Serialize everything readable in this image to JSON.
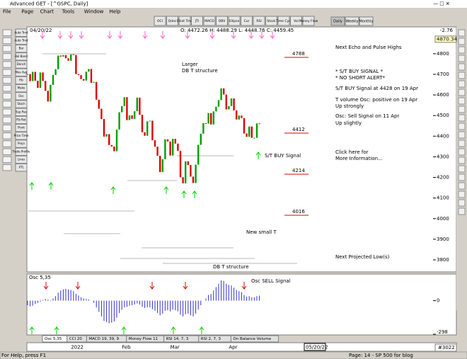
{
  "window": {
    "title": "Advanced GET - [^GSPC, Daily]"
  },
  "menu": [
    "File",
    "Page",
    "Chart",
    "Tools",
    "Window",
    "Help"
  ],
  "toolbar": [
    "OCI",
    "Qdec",
    "Elliot Trnd",
    "JTI",
    "MACD",
    "OBV",
    "Ellipse",
    "Cur",
    "RSI",
    "Stock",
    "Time Cycl",
    "Vol",
    "Money Flow"
  ],
  "periods": [
    "Daily",
    "Weekly",
    "Monthly"
  ],
  "sidebar": [
    "Auto Trnd",
    "Auto Trnd",
    "Bar",
    "Bol Band",
    "Donch",
    "Mov Avg",
    "Fib",
    "Make",
    "Osc",
    "Stoch",
    "Sup Res",
    "Fib Ret",
    "Pivot",
    "Price Time",
    "Projn",
    "Trade Profile",
    "Lines",
    "XTL"
  ],
  "header": {
    "date": "04/20/22",
    "ohlc": "O: 4472.26  H: 4488.29  L: 4448.76  C: 4459.45",
    "change": "-2.76"
  },
  "chart_data": [
    {
      "type": "candlestick",
      "categories": [
        null,
        null,
        null,
        null,
        null,
        null,
        null,
        null,
        null,
        null,
        null,
        null,
        null,
        null,
        null,
        null,
        null,
        "2022",
        null,
        null,
        null,
        null,
        null,
        null,
        null,
        null,
        null,
        null,
        null,
        null,
        null,
        null,
        null,
        null,
        null,
        null,
        null,
        "Feb",
        null,
        null,
        null,
        null,
        null,
        null,
        null,
        null,
        null,
        null,
        null,
        null,
        null,
        null,
        null,
        null,
        null,
        null,
        "Mar",
        null,
        null,
        null,
        null,
        null,
        null,
        null,
        null,
        null,
        null,
        null,
        null,
        null,
        null,
        null,
        null,
        null,
        null,
        null,
        null,
        null,
        null,
        "Apr",
        null,
        null,
        null,
        null,
        null,
        null,
        null,
        null,
        null,
        null,
        null,
        null
      ],
      "values": [
        4701,
        4667,
        4712,
        4669,
        4634,
        4709,
        4668,
        4620,
        4568,
        4649,
        4697,
        4725,
        4791,
        4786,
        4793,
        4778,
        4766,
        4797,
        4794,
        4701,
        4696,
        4677,
        4670,
        4713,
        4726,
        4659,
        4663,
        4577,
        4533,
        4483,
        4398,
        4410,
        4357,
        4350,
        4327,
        4432,
        4516,
        4546,
        4589,
        4478,
        4501,
        4484,
        4521,
        4587,
        4504,
        4419,
        4402,
        4472,
        4475,
        4380,
        4349,
        4305,
        4226,
        4288,
        4385,
        4374,
        4306,
        4387,
        4364,
        4329,
        4201,
        4171,
        4278,
        4260,
        4204,
        4173,
        4262,
        4358,
        4412,
        4463,
        4461,
        4512,
        4457,
        4520,
        4543,
        4575,
        4632,
        4602,
        4530,
        4546,
        4583,
        4525,
        4481,
        4500,
        4488,
        4413,
        4397,
        4447,
        4392,
        4392,
        4462,
        4459
      ],
      "up_color": "#00a000",
      "down_color": "#e00000",
      "ylim": [
        3745,
        4906
      ],
      "yticks": [
        4800,
        4700,
        4600,
        4500,
        4400,
        4300,
        4200,
        4100,
        4000,
        3900,
        3800
      ],
      "highlight_tick": 4870.34,
      "x_end_label": "05/20/22"
    },
    {
      "type": "bar",
      "title": "Osc 5,35",
      "color": "#3030d0",
      "values": [
        -40,
        -50,
        -45,
        -30,
        -20,
        -10,
        5,
        15,
        10,
        -5,
        20,
        40,
        70,
        90,
        100,
        105,
        100,
        95,
        85,
        60,
        45,
        30,
        20,
        15,
        10,
        0,
        -20,
        -60,
        -100,
        -140,
        -180,
        -190,
        -200,
        -195,
        -185,
        -150,
        -110,
        -80,
        -60,
        -55,
        -45,
        -40,
        -35,
        -25,
        -35,
        -55,
        -65,
        -60,
        -60,
        -75,
        -90,
        -110,
        -130,
        -115,
        -90,
        -85,
        -95,
        -80,
        -85,
        -95,
        -125,
        -140,
        -120,
        -115,
        -130,
        -140,
        -115,
        -80,
        -40,
        0,
        20,
        50,
        60,
        90,
        120,
        150,
        180,
        175,
        150,
        140,
        135,
        115,
        95,
        85,
        75,
        50,
        35,
        40,
        30,
        30,
        40,
        45
      ],
      "ylim": [
        -298,
        230
      ],
      "yticks": [
        0,
        -298
      ]
    }
  ],
  "annotations": [
    "Larger",
    "DB T structure",
    "Next Echo and Pulse Highs",
    "* S/T BUY SIGNAL *",
    "* NO SHORT ALERT*",
    "S/T BUY Signal at 4428 on 19 Apr",
    "T volume Osc: positive on 19 Apr",
    "Up strongly",
    "Osc: Sell Signal on 11 Apr",
    "Up slightly",
    "S/T BUY Signal",
    "Click here for",
    "More Information...",
    "New small T",
    "Next Projected Low(s)",
    "DB T structure",
    "Osc SELL Signal"
  ],
  "levels": [
    "4788",
    "4412",
    "4214",
    "4016"
  ],
  "tabs": [
    "Osc 5,35",
    "CCI 20",
    "MACD 19, 39, 9",
    "Money Flow 11",
    "RSI 14, 7, 3",
    "RSI 2, 7, 3",
    "On Balance Volume"
  ],
  "status": {
    "help": "For Help, press F1",
    "page": "Page: 14 - SP 500 for blog",
    "count": "#3022"
  }
}
